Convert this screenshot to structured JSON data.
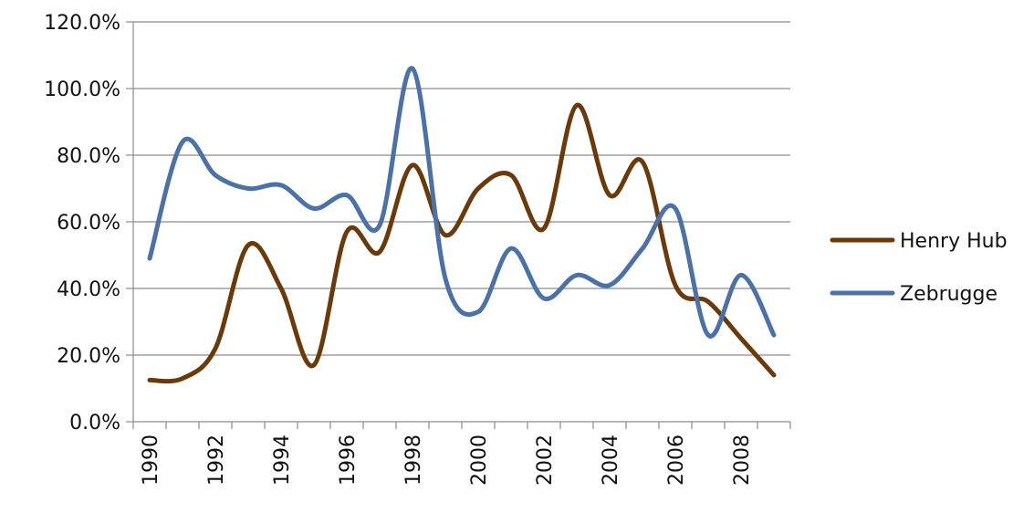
{
  "chart_data": {
    "type": "line",
    "x": [
      1990,
      1991,
      1992,
      1993,
      1994,
      1995,
      1996,
      1997,
      1998,
      1999,
      2000,
      2001,
      2002,
      2003,
      2004,
      2005,
      2006,
      2007,
      2008,
      2009
    ],
    "x_tick_labels": [
      "1990",
      "1992",
      "1994",
      "1996",
      "1998",
      "2000",
      "2002",
      "2004",
      "2006",
      "2008"
    ],
    "y_tick_labels": [
      "0.0%",
      "20.0%",
      "40.0%",
      "60.0%",
      "80.0%",
      "100.0%",
      "120.0%"
    ],
    "ylim": [
      0,
      120
    ],
    "y_unit": "%",
    "grid": "horizontal",
    "legend_position": "right",
    "series": [
      {
        "name": "Henry Hub",
        "color": "#6b3a0a",
        "values": [
          12.5,
          13,
          22,
          53,
          40,
          17,
          57,
          51,
          77,
          56,
          70,
          74,
          58,
          95,
          68,
          78,
          41,
          36,
          25,
          14
        ]
      },
      {
        "name": "Zebrugge",
        "color": "#4a72a8",
        "values": [
          49,
          84,
          74,
          70,
          71,
          64,
          68,
          59,
          106,
          43,
          33,
          52,
          37,
          44,
          41,
          52,
          64,
          26,
          44,
          26
        ]
      }
    ]
  }
}
